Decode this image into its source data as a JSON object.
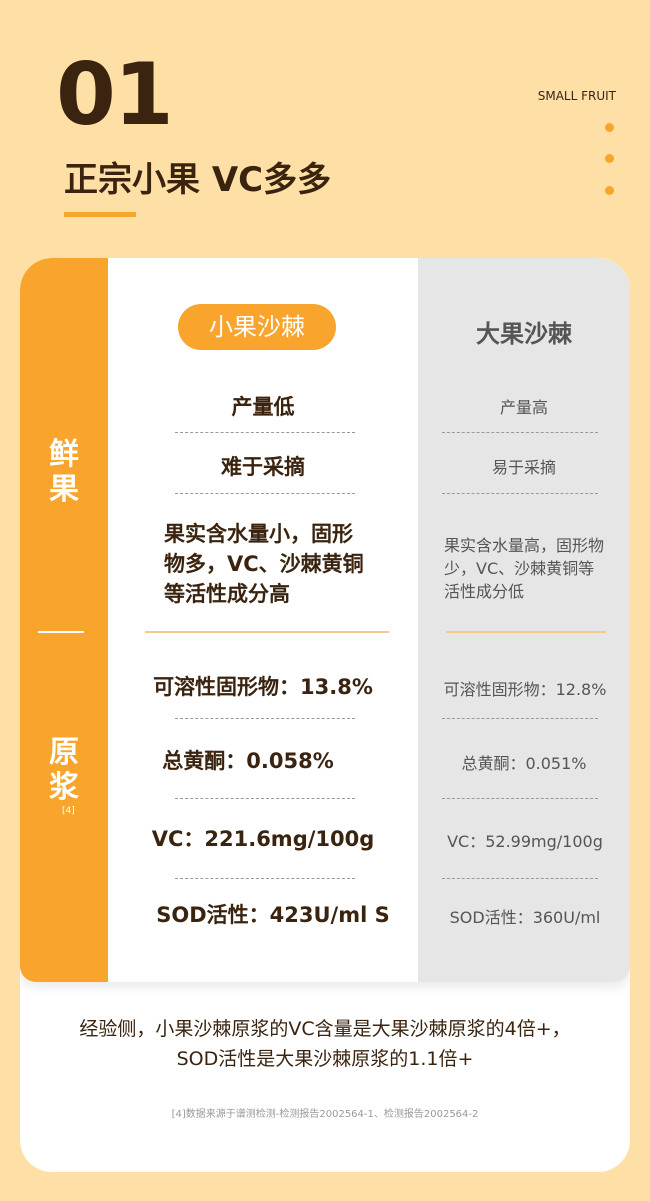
{
  "header": {
    "number": "01",
    "title": "正宗小果 VC多多",
    "tag": "SMALL FRUIT"
  },
  "accent": "#F9A52D",
  "table": {
    "row_labels": {
      "fresh": "鲜果",
      "juice": "原浆",
      "juice_ref": "[4]"
    },
    "columns": [
      "小果沙棘",
      "大果沙棘"
    ],
    "fresh_rows": [
      {
        "small": "产量低",
        "large": "产量高"
      },
      {
        "small": "难于采摘",
        "large": "易于采摘"
      },
      {
        "small": "果实含水量小，固形物多，VC、沙棘黄铜等活性成分高",
        "large": "果实含水量高，固形物少，VC、沙棘黄铜等活性成分低"
      }
    ],
    "juice_rows": [
      {
        "small": "可溶性固形物：13.8%",
        "large": "可溶性固形物：12.8%"
      },
      {
        "small": "总黄酮：0.058%",
        "large": "总黄酮：0.051%"
      },
      {
        "small": "VC：221.6mg/100g",
        "large": "VC：52.99mg/100g"
      },
      {
        "small": "SOD活性：423U/ml S",
        "large": "SOD活性：360U/ml"
      }
    ]
  },
  "conclusion": {
    "line1": "经验侧，小果沙棘原浆的VC含量是大果沙棘原浆的4倍+，",
    "line2": "SOD活性是大果沙棘原浆的1.1倍+"
  },
  "footnote": "[4]数据来源于谱测检测-检测报告2002564-1、检测报告2002564-2"
}
